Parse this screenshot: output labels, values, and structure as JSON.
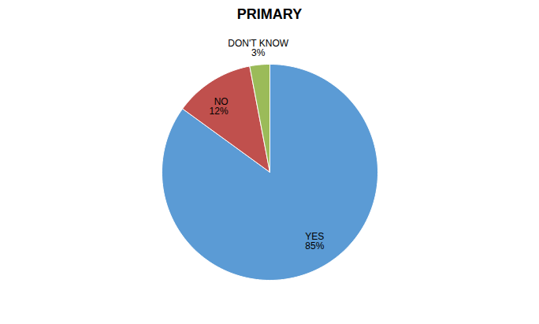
{
  "chart_data": {
    "type": "pie",
    "title": "PRIMARY",
    "categories": [
      "YES",
      "NO",
      "DON'T KNOW"
    ],
    "values": [
      85,
      12,
      3
    ],
    "value_labels": [
      "85%",
      "12%",
      "3%"
    ],
    "colors": [
      "#5B9BD5",
      "#C0504D",
      "#9BBB59"
    ],
    "data_labels": true
  }
}
